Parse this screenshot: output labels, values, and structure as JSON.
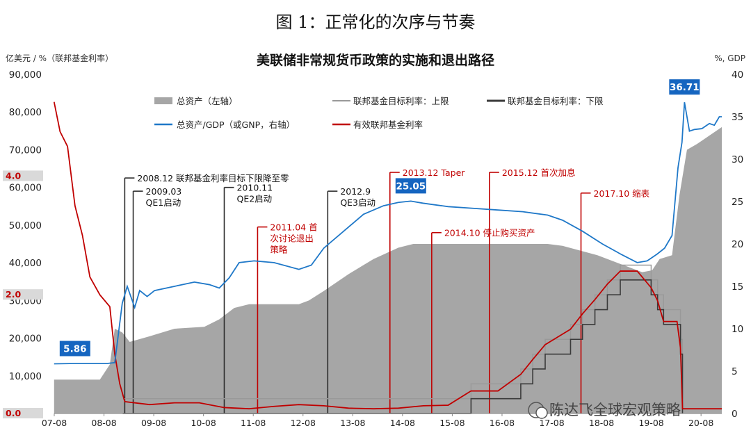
{
  "figure_caption": "图 1：正常化的次序与节奏",
  "watermark": "陈达飞全球宏观策略",
  "colors": {
    "assets": "#a6a6a6",
    "ratio": "#1f78c8",
    "upper": "#999999",
    "lower": "#3a3a3a",
    "effective": "#c00000",
    "badge_blue": "#1565c0",
    "marker_line": "#2b2b2b",
    "event_red": "#c00000"
  },
  "chart_data": {
    "type": "area+line",
    "title": "美联储非常规货币政策的实施和退出路径",
    "left_axis_label": "亿美元 / %（联邦基金利率）",
    "right_axis_label": "%, GDP",
    "left_ticks": [
      "0",
      "10,000",
      "20,000",
      "30,000",
      "40,000",
      "50,000",
      "60,000",
      "70,000",
      "80,000",
      "90,000"
    ],
    "right_ticks": [
      "0",
      "5",
      "10",
      "15",
      "20",
      "25",
      "30",
      "35",
      "40"
    ],
    "x_ticks": [
      "07-08",
      "08-08",
      "09-08",
      "10-08",
      "11-08",
      "12-08",
      "13-08",
      "14-08",
      "15-08",
      "16-08",
      "17-08",
      "18-08",
      "19-08",
      "20-08"
    ],
    "left_range": [
      0,
      90000
    ],
    "right_range": [
      0,
      40
    ],
    "x_range": [
      2007.583,
      2021.0
    ],
    "rate_markers": [
      "0.0",
      "2.0",
      "4.0"
    ],
    "rate_scale_note": "rate % plotted on left axis where 4.0% = 63,000",
    "legend": {
      "assets": "总资产（左轴）",
      "ratio": "总资产/GDP（或GNP，右轴）",
      "upper": "联邦基金目标利率：上限",
      "lower": "联邦基金目标利率：下限",
      "effective": "有效联邦基金利率"
    },
    "series_assets": {
      "name": "总资产（左轴）",
      "x": [
        2007.58,
        2008.5,
        2008.7,
        2008.8,
        2008.95,
        2009.1,
        2009.5,
        2010.0,
        2010.6,
        2010.9,
        2011.2,
        2011.5,
        2012.0,
        2012.5,
        2012.7,
        2013.0,
        2013.5,
        2014.0,
        2014.5,
        2014.8,
        2015.5,
        2016.5,
        2017.5,
        2017.8,
        2018.5,
        2019.0,
        2019.4,
        2019.6,
        2019.75,
        2020.0,
        2020.15,
        2020.3,
        2020.5,
        2021.0
      ],
      "values": [
        9000,
        9000,
        13000,
        22500,
        21500,
        19000,
        20500,
        22500,
        23000,
        25000,
        28000,
        29000,
        29000,
        29000,
        30000,
        32500,
        37000,
        41000,
        44000,
        45000,
        45000,
        45000,
        45000,
        44500,
        42000,
        39500,
        37500,
        38000,
        41000,
        42000,
        58000,
        70000,
        71500,
        76000
      ]
    },
    "series_ratio": {
      "name": "总资产/GDP（或GNP，右轴）",
      "x": [
        2007.58,
        2008.0,
        2008.5,
        2008.65,
        2008.8,
        2008.95,
        2009.05,
        2009.2,
        2009.3,
        2009.45,
        2009.6,
        2010.0,
        2010.4,
        2010.7,
        2010.9,
        2011.1,
        2011.3,
        2011.6,
        2012.0,
        2012.5,
        2012.75,
        2013.0,
        2013.4,
        2013.8,
        2014.2,
        2014.5,
        2014.75,
        2015.0,
        2015.5,
        2016.0,
        2016.5,
        2017.0,
        2017.5,
        2017.8,
        2018.2,
        2018.6,
        2019.0,
        2019.3,
        2019.5,
        2019.7,
        2019.85,
        2020.0,
        2020.12,
        2020.2,
        2020.25,
        2020.35,
        2020.45,
        2020.6,
        2020.75,
        2020.85,
        2020.95,
        2021.0
      ],
      "values": [
        5.86,
        5.9,
        5.9,
        5.9,
        6.0,
        13.0,
        15.0,
        12.5,
        14.5,
        13.8,
        14.5,
        15.0,
        15.5,
        15.2,
        14.8,
        16.0,
        17.8,
        18.0,
        17.8,
        17.0,
        17.5,
        19.5,
        21.5,
        23.5,
        24.5,
        24.9,
        25.05,
        24.8,
        24.4,
        24.2,
        24.0,
        23.8,
        23.4,
        22.8,
        21.5,
        20.0,
        18.7,
        17.8,
        18.0,
        18.8,
        19.5,
        21.0,
        29.0,
        32.0,
        36.71,
        33.3,
        33.5,
        33.6,
        34.2,
        34.0,
        35.0,
        35.0
      ]
    },
    "series_upper": {
      "name": "联邦基金目标利率：上限",
      "x": [
        2008.96,
        2015.96,
        2016.96,
        2017.2,
        2017.45,
        2017.96,
        2018.2,
        2018.45,
        2018.7,
        2018.96,
        2019.58,
        2019.71,
        2019.83,
        2020.17,
        2020.21
      ],
      "values": [
        0.25,
        0.5,
        0.75,
        1.0,
        1.25,
        1.5,
        1.75,
        2.0,
        2.25,
        2.5,
        2.25,
        2.0,
        1.75,
        1.25,
        0.25
      ]
    },
    "series_lower": {
      "name": "联邦基金目标利率：下限",
      "x": [
        2008.96,
        2015.96,
        2016.96,
        2017.2,
        2017.45,
        2017.96,
        2018.2,
        2018.45,
        2018.7,
        2018.96,
        2019.58,
        2019.71,
        2019.83,
        2020.17,
        2020.21
      ],
      "values": [
        0.0,
        0.25,
        0.5,
        0.75,
        1.0,
        1.25,
        1.5,
        1.75,
        2.0,
        2.25,
        2.0,
        1.75,
        1.5,
        1.0,
        0.0
      ]
    },
    "series_effective": {
      "name": "有效联邦基金利率",
      "x": [
        2007.58,
        2007.7,
        2007.85,
        2008.0,
        2008.15,
        2008.3,
        2008.5,
        2008.7,
        2008.8,
        2008.9,
        2009.0,
        2009.5,
        2010.0,
        2010.5,
        2011.0,
        2011.5,
        2012.0,
        2012.5,
        2013.0,
        2013.5,
        2014.0,
        2014.5,
        2015.0,
        2015.5,
        2015.96,
        2016.5,
        2016.96,
        2017.2,
        2017.45,
        2017.96,
        2018.2,
        2018.45,
        2018.7,
        2018.96,
        2019.3,
        2019.58,
        2019.71,
        2019.83,
        2020.1,
        2020.17,
        2020.21,
        2020.5,
        2021.0
      ],
      "values": [
        5.25,
        4.75,
        4.5,
        3.5,
        3.0,
        2.3,
        2.0,
        1.8,
        1.0,
        0.5,
        0.2,
        0.15,
        0.18,
        0.18,
        0.1,
        0.08,
        0.12,
        0.15,
        0.13,
        0.09,
        0.08,
        0.09,
        0.13,
        0.14,
        0.38,
        0.38,
        0.66,
        0.91,
        1.16,
        1.42,
        1.68,
        1.92,
        2.18,
        2.4,
        2.4,
        2.12,
        1.9,
        1.55,
        1.55,
        1.1,
        0.08,
        0.08,
        0.08
      ]
    },
    "badges": [
      {
        "label": "5.86",
        "x": 2008.0,
        "value": 5.86
      },
      {
        "label": "25.05",
        "x": 2014.75,
        "value": 25.05
      },
      {
        "label": "36.71",
        "x": 2020.25,
        "value": 36.71
      }
    ],
    "events": [
      {
        "date": 2009.0,
        "lines": [
          "2008.12 联邦基金利率目标下限降至零"
        ],
        "color": "dark",
        "level": 62500
      },
      {
        "date": 2009.17,
        "lines": [
          "2009.03",
          "QE1启动"
        ],
        "color": "dark",
        "level": 59000
      },
      {
        "date": 2011.0,
        "lines": [
          "2010.11",
          "QE2启动"
        ],
        "color": "dark",
        "level": 60000
      },
      {
        "date": 2013.08,
        "lines": [
          "2012.9",
          "QE3启动"
        ],
        "color": "dark",
        "level": 59000
      },
      {
        "date": 2011.67,
        "lines": [
          "2011.04 首",
          "次讨论退出",
          "策略"
        ],
        "color": "red",
        "level": 49500
      },
      {
        "date": 2014.33,
        "lines": [
          "2013.12 Taper"
        ],
        "color": "red",
        "level": 64000
      },
      {
        "date": 2015.17,
        "lines": [
          "2014.10 停止购买资产"
        ],
        "color": "red",
        "level": 48000
      },
      {
        "date": 2016.33,
        "lines": [
          "2015.12 首次加息"
        ],
        "color": "red",
        "level": 64000
      },
      {
        "date": 2018.17,
        "lines": [
          "2017.10 缩表"
        ],
        "color": "red",
        "level": 58500
      }
    ]
  }
}
